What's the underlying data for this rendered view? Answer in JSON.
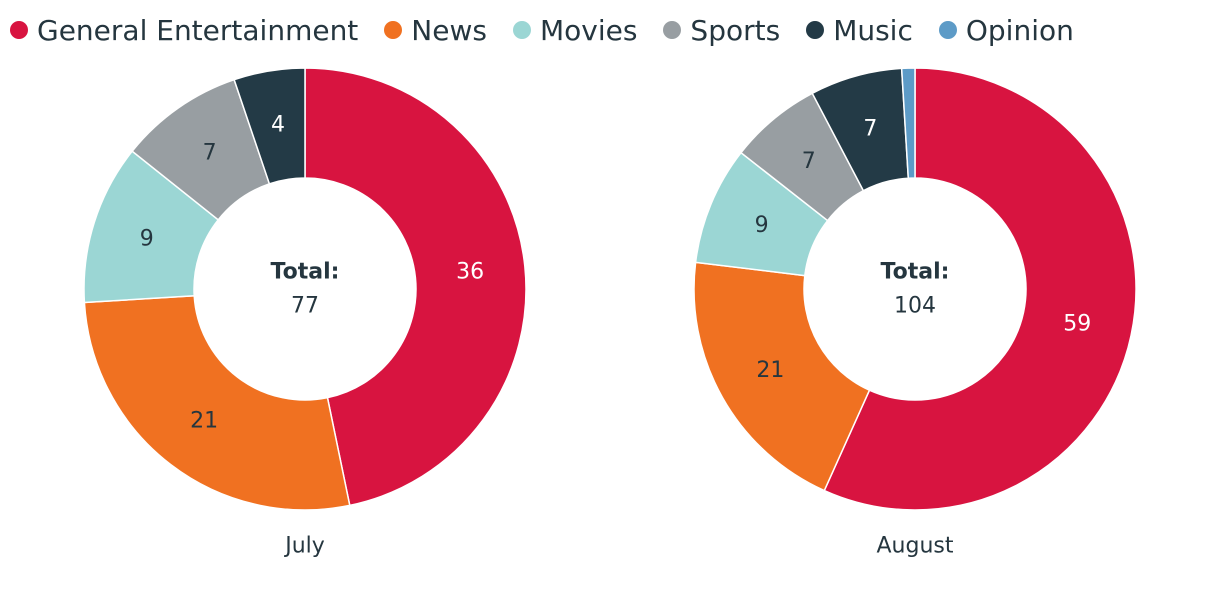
{
  "chart_data": [
    {
      "type": "pie",
      "title": "July",
      "categories": [
        "General Entertainment",
        "News",
        "Movies",
        "Sports",
        "Music",
        "Opinion"
      ],
      "values": [
        36,
        21,
        9,
        7,
        4,
        0
      ],
      "data_labels": [
        "36",
        "21",
        "9",
        "7",
        "4",
        ""
      ],
      "center_label": "Total:",
      "center_value": "77",
      "donut": true,
      "legend_position": "top-left"
    },
    {
      "type": "pie",
      "title": "August",
      "categories": [
        "General Entertainment",
        "News",
        "Movies",
        "Sports",
        "Music",
        "Opinion"
      ],
      "values": [
        59,
        21,
        9,
        7,
        7,
        1
      ],
      "data_labels": [
        "59",
        "21",
        "9",
        "7",
        "7",
        ""
      ],
      "center_label": "Total:",
      "center_value": "104",
      "donut": true,
      "legend_position": "top-left"
    }
  ],
  "legend": [
    {
      "label": "General Entertainment",
      "color": "#d81440"
    },
    {
      "label": "News",
      "color": "#f07121"
    },
    {
      "label": "Movies",
      "color": "#9bd6d4"
    },
    {
      "label": "Sports",
      "color": "#989ea2"
    },
    {
      "label": "Music",
      "color": "#233a46"
    },
    {
      "label": "Opinion",
      "color": "#5d9bc7"
    }
  ],
  "label_colors": [
    "#ffffff",
    "#25363f",
    "#25363f",
    "#25363f",
    "#ffffff",
    "#ffffff"
  ]
}
